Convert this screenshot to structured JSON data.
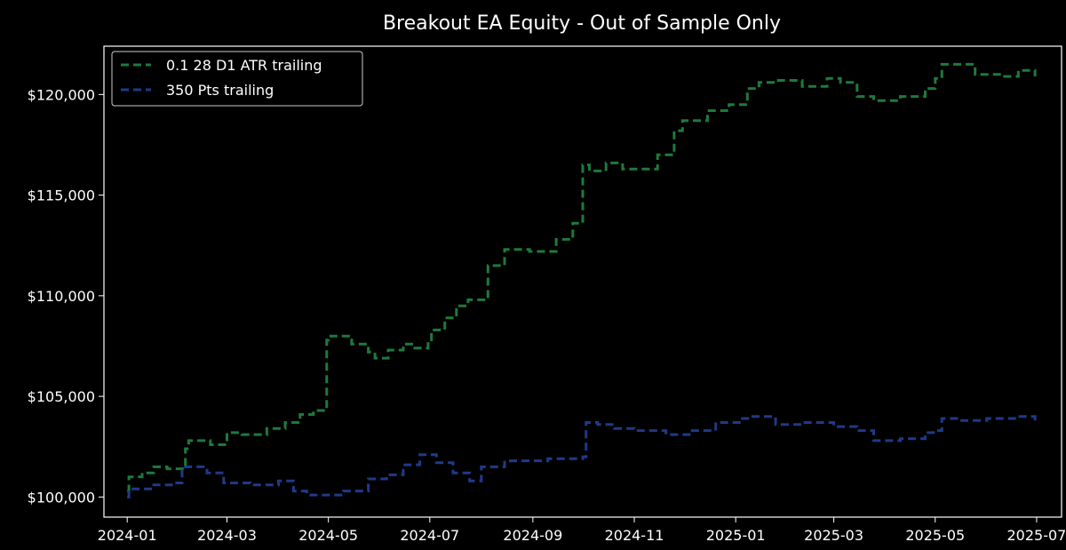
{
  "chart_data": {
    "type": "line",
    "title": "Breakout EA Equity - Out of Sample Only",
    "xlabel": "",
    "ylabel": "",
    "x_axis_type": "date",
    "xlim": [
      "2023-12-18",
      "2025-07-16"
    ],
    "ylim": [
      99000,
      122400
    ],
    "x_ticks": [
      "2024-01-01",
      "2024-03-01",
      "2024-05-01",
      "2024-07-01",
      "2024-09-01",
      "2024-11-01",
      "2025-01-01",
      "2025-03-01",
      "2025-05-01",
      "2025-07-01"
    ],
    "x_tick_labels": [
      "2024-01",
      "2024-03",
      "2024-05",
      "2024-07",
      "2024-09",
      "2024-11",
      "2025-01",
      "2025-03",
      "2025-05",
      "2025-07"
    ],
    "y_ticks": [
      100000,
      105000,
      110000,
      115000,
      120000
    ],
    "y_tick_labels": [
      "$100,000",
      "$105,000",
      "$110,000",
      "$115,000",
      "$120,000"
    ],
    "grid": false,
    "legend_position": "top-left",
    "background": "#000000",
    "series": [
      {
        "name": "0.1 28 D1 ATR trailing",
        "color": "#1e7a3c",
        "line_style": "dashed",
        "step": true,
        "x": [
          "2024-01-01",
          "2024-01-02",
          "2024-01-10",
          "2024-01-17",
          "2024-01-25",
          "2024-02-05",
          "2024-02-07",
          "2024-02-12",
          "2024-02-20",
          "2024-03-01",
          "2024-03-10",
          "2024-03-25",
          "2024-04-05",
          "2024-04-14",
          "2024-04-22",
          "2024-04-30",
          "2024-05-01",
          "2024-05-15",
          "2024-05-25",
          "2024-05-29",
          "2024-06-06",
          "2024-06-15",
          "2024-06-22",
          "2024-06-30",
          "2024-07-02",
          "2024-07-10",
          "2024-07-17",
          "2024-07-24",
          "2024-08-05",
          "2024-08-15",
          "2024-08-30",
          "2024-09-15",
          "2024-09-25",
          "2024-10-01",
          "2024-10-05",
          "2024-10-15",
          "2024-10-25",
          "2024-11-10",
          "2024-11-15",
          "2024-11-25",
          "2024-11-30",
          "2024-12-15",
          "2024-12-28",
          "2025-01-08",
          "2025-01-15",
          "2025-01-25",
          "2025-02-10",
          "2025-02-25",
          "2025-03-05",
          "2025-03-15",
          "2025-03-25",
          "2025-04-10",
          "2025-04-25",
          "2025-05-01",
          "2025-05-05",
          "2025-05-25",
          "2025-06-10",
          "2025-06-20",
          "2025-06-30"
        ],
        "y": [
          100300,
          101000,
          101200,
          101500,
          101400,
          102400,
          102800,
          102800,
          102600,
          103200,
          103100,
          103400,
          103700,
          104100,
          104300,
          107800,
          108000,
          107600,
          107200,
          106900,
          107300,
          107600,
          107400,
          107700,
          108300,
          108900,
          109500,
          109800,
          111500,
          112300,
          112200,
          112800,
          113600,
          116500,
          116200,
          116600,
          116300,
          116300,
          117000,
          118200,
          118700,
          119200,
          119500,
          120300,
          120600,
          120700,
          120400,
          120800,
          120600,
          119900,
          119700,
          119900,
          120300,
          120800,
          121500,
          121000,
          120900,
          121200,
          120900
        ]
      },
      {
        "name": "350 Pts trailing",
        "color": "#1e3a8a",
        "line_style": "dashed",
        "step": true,
        "x": [
          "2024-01-01",
          "2024-01-02",
          "2024-01-17",
          "2024-01-29",
          "2024-02-03",
          "2024-02-18",
          "2024-02-28",
          "2024-03-15",
          "2024-04-01",
          "2024-04-10",
          "2024-04-18",
          "2024-05-10",
          "2024-05-25",
          "2024-06-05",
          "2024-06-15",
          "2024-06-25",
          "2024-07-05",
          "2024-07-15",
          "2024-07-25",
          "2024-08-01",
          "2024-08-15",
          "2024-09-10",
          "2024-10-01",
          "2024-10-03",
          "2024-10-10",
          "2024-10-20",
          "2024-11-01",
          "2024-11-20",
          "2024-12-05",
          "2024-12-20",
          "2025-01-05",
          "2025-01-10",
          "2025-01-25",
          "2025-02-10",
          "2025-03-01",
          "2025-03-15",
          "2025-03-25",
          "2025-04-10",
          "2025-04-25",
          "2025-05-01",
          "2025-05-05",
          "2025-05-15",
          "2025-06-01",
          "2025-06-20",
          "2025-06-30"
        ],
        "y": [
          100000,
          100400,
          100600,
          100700,
          101500,
          101200,
          100700,
          100600,
          100800,
          100300,
          100100,
          100300,
          100900,
          101100,
          101600,
          102100,
          101700,
          101200,
          100800,
          101500,
          101800,
          101900,
          102000,
          103700,
          103600,
          103400,
          103300,
          103100,
          103300,
          103700,
          103900,
          104000,
          103600,
          103700,
          103500,
          103300,
          102800,
          102900,
          103200,
          103300,
          103900,
          103800,
          103900,
          104000,
          103600
        ]
      }
    ]
  }
}
